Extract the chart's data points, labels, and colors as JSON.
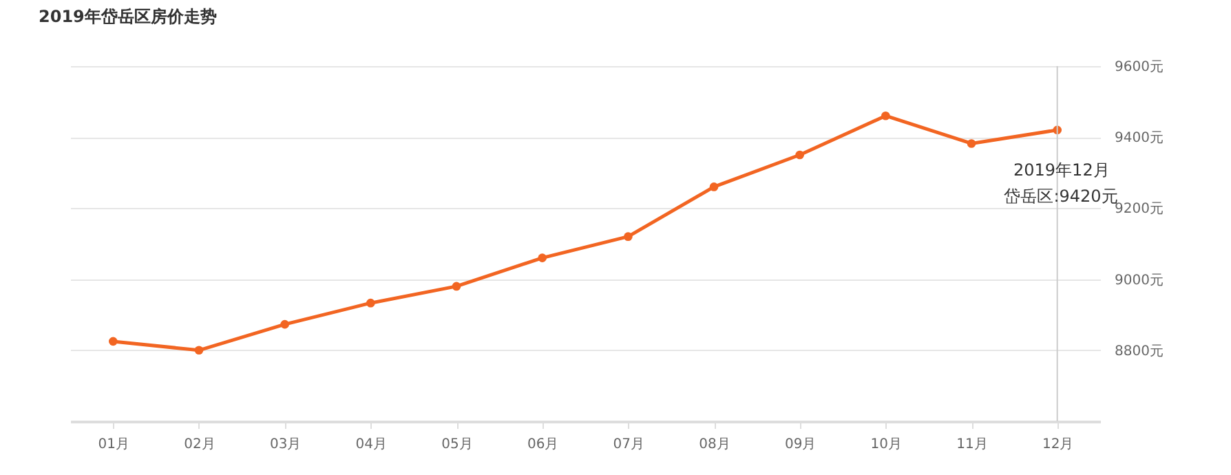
{
  "chart_data": {
    "type": "line",
    "title": "2019年岱岳区房价走势",
    "categories": [
      "01月",
      "02月",
      "03月",
      "04月",
      "05月",
      "06月",
      "07月",
      "08月",
      "09月",
      "10月",
      "11月",
      "12月"
    ],
    "series": [
      {
        "color": "#f26522",
        "values": [
          8825,
          8800,
          8873,
          8933,
          8980,
          9060,
          9120,
          9260,
          9350,
          9460,
          9382,
          9420
        ]
      }
    ],
    "ylim": [
      8600,
      9600
    ],
    "yticks": [
      {
        "value": 8600,
        "label": null
      },
      {
        "value": 8800,
        "label": "8800元"
      },
      {
        "value": 9000,
        "label": "9000元"
      },
      {
        "value": 9200,
        "label": "9200元"
      },
      {
        "value": 9400,
        "label": "9400元"
      },
      {
        "value": 9600,
        "label": "9600元"
      }
    ],
    "grid": "y",
    "marker": "circle",
    "line_style": "solid",
    "ref_lines": [
      {
        "axis": "x",
        "value": "12月",
        "color": "#cccccc"
      }
    ],
    "annotations": [
      {
        "text": "2019年12月",
        "x": "12月",
        "y": 9420
      },
      "岱岳区:9420元"
    ]
  }
}
